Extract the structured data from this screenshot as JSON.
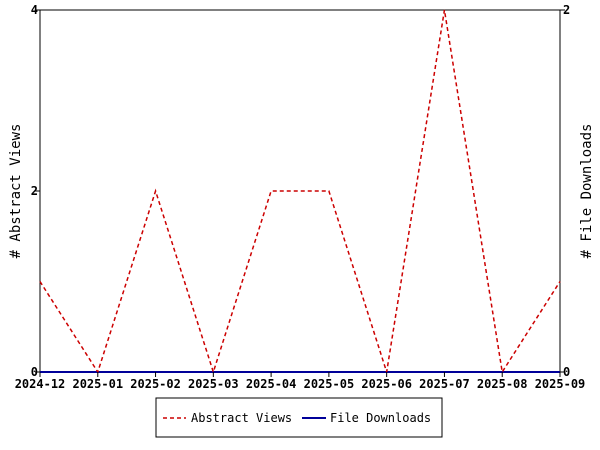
{
  "chart_data": {
    "type": "line",
    "categories": [
      "2024-12",
      "2025-01",
      "2025-02",
      "2025-03",
      "2025-04",
      "2025-05",
      "2025-06",
      "2025-07",
      "2025-08",
      "2025-09"
    ],
    "xlabel": "",
    "ylabel": "# Abstract Views",
    "ylabel_right": "# File Downloads",
    "ylim": [
      0,
      4
    ],
    "ylim_right": [
      0,
      2
    ],
    "yticks": [
      "0",
      "2",
      "4"
    ],
    "yticks_right": [
      "0",
      "2"
    ],
    "grid": false,
    "legend_position": "bottom",
    "series": [
      {
        "name": "Abstract Views",
        "axis": "left",
        "color": "#cc0000",
        "dash": "dashed",
        "points": [
          {
            "x": "2024-12",
            "y": 1
          },
          {
            "x": "2025-01",
            "y": 0
          },
          {
            "x": "2025-02",
            "y": 2
          },
          {
            "x": "2025-03",
            "y": 0
          },
          {
            "x": "2025-04",
            "y": 2
          },
          {
            "x": "2025-05",
            "y": 2
          },
          {
            "x": "2025-06",
            "y": 0
          },
          {
            "x": "2025-07",
            "y": 4
          },
          {
            "x": "2025-08",
            "y": 0
          },
          {
            "x": "2025-09",
            "y": 1
          }
        ]
      },
      {
        "name": "File Downloads",
        "axis": "right",
        "color": "#000099",
        "dash": "solid",
        "points": [
          {
            "x": "2024-12",
            "y": 0
          },
          {
            "x": "2025-01",
            "y": 0
          },
          {
            "x": "2025-02",
            "y": 0
          },
          {
            "x": "2025-03",
            "y": 0
          },
          {
            "x": "2025-04",
            "y": 0
          },
          {
            "x": "2025-05",
            "y": 0
          },
          {
            "x": "2025-06",
            "y": 0
          },
          {
            "x": "2025-07",
            "y": 0
          },
          {
            "x": "2025-08",
            "y": 0
          },
          {
            "x": "2025-09",
            "y": 0
          }
        ]
      }
    ]
  }
}
